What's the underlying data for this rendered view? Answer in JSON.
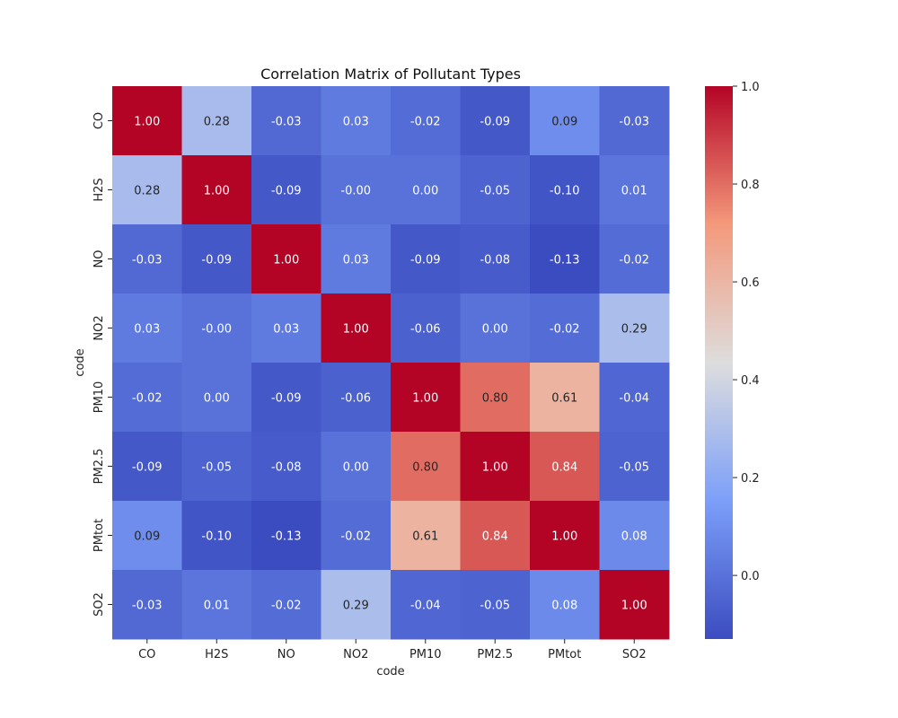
{
  "chart_data": {
    "type": "heatmap",
    "title": "Correlation Matrix of Pollutant Types",
    "xlabel": "code",
    "ylabel": "code",
    "x_categories": [
      "CO",
      "H2S",
      "NO",
      "NO2",
      "PM10",
      "PM2.5",
      "PMtot",
      "SO2"
    ],
    "y_categories": [
      "CO",
      "H2S",
      "NO",
      "NO2",
      "PM10",
      "PM2.5",
      "PMtot",
      "SO2"
    ],
    "values": [
      [
        1.0,
        0.28,
        -0.03,
        0.03,
        -0.02,
        -0.09,
        0.09,
        -0.03
      ],
      [
        0.28,
        1.0,
        -0.09,
        -0.0,
        0.0,
        -0.05,
        -0.1,
        0.01
      ],
      [
        -0.03,
        -0.09,
        1.0,
        0.03,
        -0.09,
        -0.08,
        -0.13,
        -0.02
      ],
      [
        0.03,
        -0.0,
        0.03,
        1.0,
        -0.06,
        0.0,
        -0.02,
        0.29
      ],
      [
        -0.02,
        0.0,
        -0.09,
        -0.06,
        1.0,
        0.8,
        0.61,
        -0.04
      ],
      [
        -0.09,
        -0.05,
        -0.08,
        0.0,
        0.8,
        1.0,
        0.84,
        -0.05
      ],
      [
        0.09,
        -0.1,
        -0.13,
        -0.02,
        0.61,
        0.84,
        1.0,
        0.08
      ],
      [
        -0.03,
        0.01,
        -0.02,
        0.29,
        -0.04,
        -0.05,
        0.08,
        1.0
      ]
    ],
    "cell_labels": [
      [
        "1.00",
        "0.28",
        "-0.03",
        "0.03",
        "-0.02",
        "-0.09",
        "0.09",
        "-0.03"
      ],
      [
        "0.28",
        "1.00",
        "-0.09",
        "-0.00",
        "0.00",
        "-0.05",
        "-0.10",
        "0.01"
      ],
      [
        "-0.03",
        "-0.09",
        "1.00",
        "0.03",
        "-0.09",
        "-0.08",
        "-0.13",
        "-0.02"
      ],
      [
        "0.03",
        "-0.00",
        "0.03",
        "1.00",
        "-0.06",
        "0.00",
        "-0.02",
        "0.29"
      ],
      [
        "-0.02",
        "0.00",
        "-0.09",
        "-0.06",
        "1.00",
        "0.80",
        "0.61",
        "-0.04"
      ],
      [
        "-0.09",
        "-0.05",
        "-0.08",
        "0.00",
        "0.80",
        "1.00",
        "0.84",
        "-0.05"
      ],
      [
        "0.09",
        "-0.10",
        "-0.13",
        "-0.02",
        "0.61",
        "0.84",
        "1.00",
        "0.08"
      ],
      [
        "-0.03",
        "0.01",
        "-0.02",
        "0.29",
        "-0.04",
        "-0.05",
        "0.08",
        "1.00"
      ]
    ],
    "colormap": "coolwarm",
    "colorbar": {
      "range": [
        -0.13,
        1.0
      ],
      "ticks": [
        0.0,
        0.2,
        0.4,
        0.6,
        0.8,
        1.0
      ],
      "tick_labels": [
        "0.0",
        "0.2",
        "0.4",
        "0.6",
        "0.8",
        "1.0"
      ],
      "position": "right"
    },
    "colors": {
      "cool_end": "#3b4cc0",
      "neutral": "#dddddd",
      "warm_end": "#b40426"
    }
  }
}
